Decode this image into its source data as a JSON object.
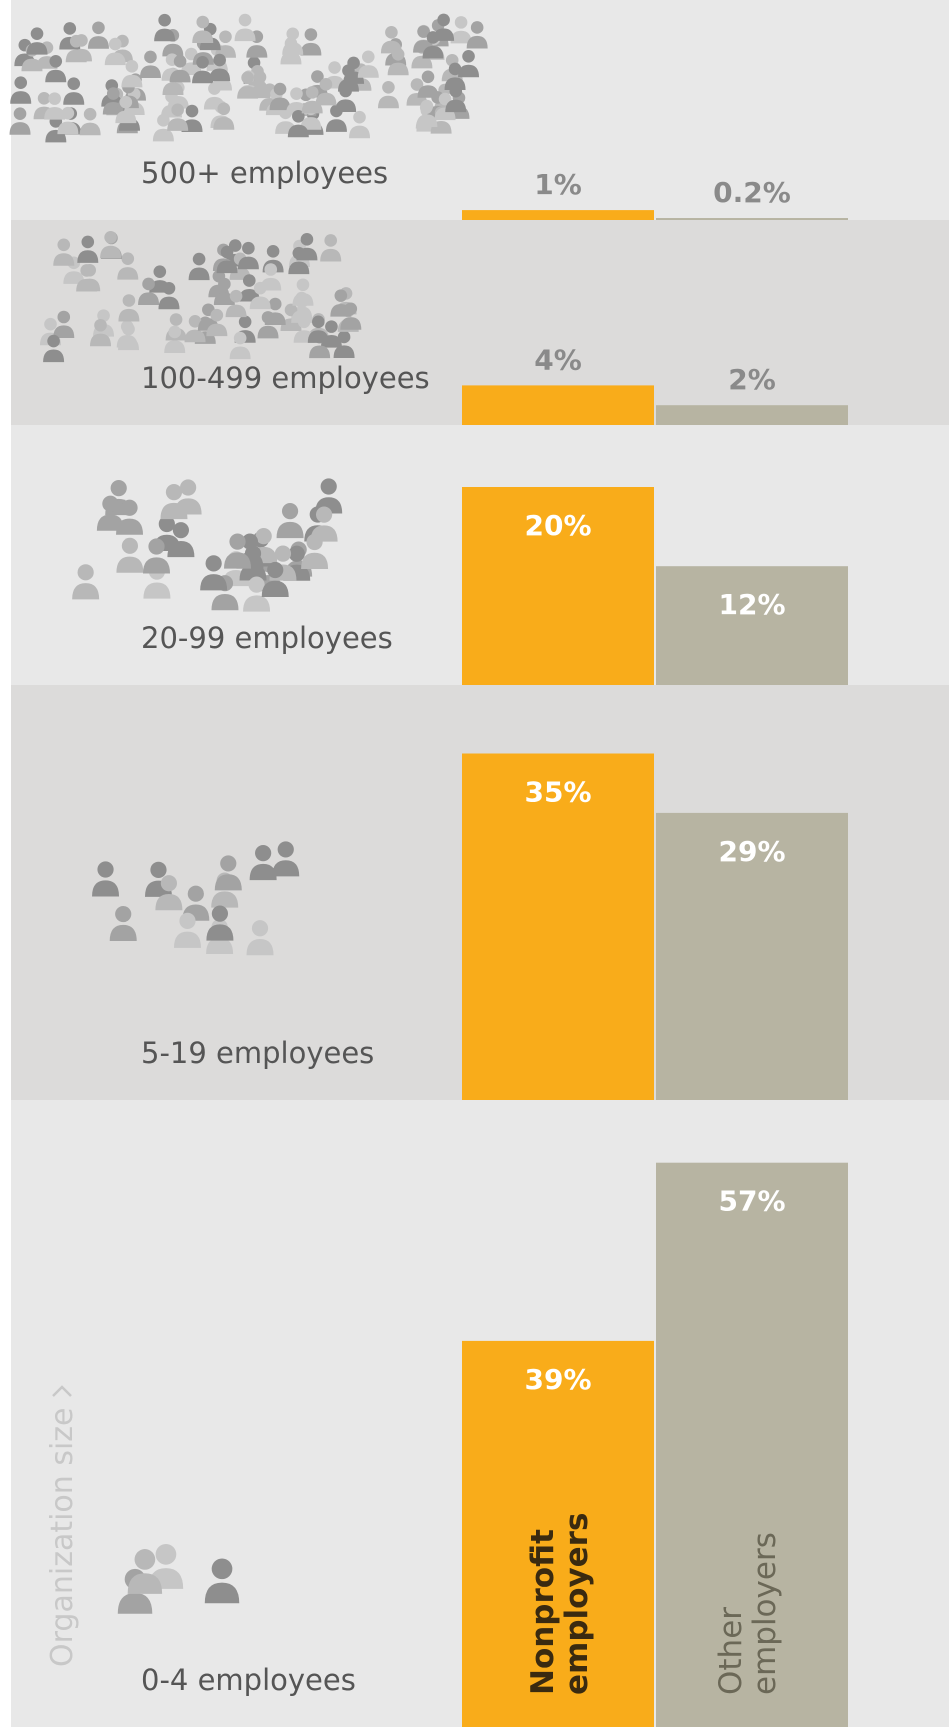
{
  "chart_data": {
    "type": "bar",
    "axis_label": "Organization size",
    "categories": [
      "500+ employees",
      "100-499 employees",
      "20-99 employees",
      "5-19 employees",
      "0-4 employees"
    ],
    "series": [
      {
        "name": "Nonprofit employers",
        "color": "#f9ac1a",
        "values": [
          1,
          4,
          20,
          35,
          39
        ],
        "value_labels": [
          "1%",
          "4%",
          "20%",
          "35%",
          "39%"
        ]
      },
      {
        "name": "Other employers",
        "color": "#b7b4a2",
        "values": [
          0.2,
          2,
          12,
          29,
          57
        ],
        "value_labels": [
          "0.2%",
          "2%",
          "12%",
          "29%",
          "57%"
        ]
      }
    ]
  }
}
